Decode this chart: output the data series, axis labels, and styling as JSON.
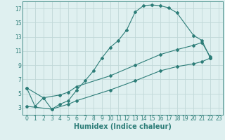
{
  "line1_x": [
    0,
    1,
    2,
    3,
    4,
    5,
    6,
    7,
    8,
    9,
    10,
    11,
    12,
    13,
    14,
    15,
    16,
    17,
    18,
    20,
    21,
    22
  ],
  "line1_y": [
    5.8,
    3.2,
    4.4,
    2.8,
    3.5,
    4.0,
    5.5,
    6.8,
    8.2,
    10.0,
    11.5,
    12.5,
    14.0,
    16.5,
    17.4,
    17.5,
    17.4,
    17.1,
    16.4,
    13.2,
    12.5,
    10.0
  ],
  "line2_x": [
    0,
    2,
    4,
    5,
    6,
    10,
    13,
    16,
    18,
    20,
    21,
    22
  ],
  "line2_y": [
    5.8,
    4.4,
    4.8,
    5.2,
    6.0,
    7.5,
    9.0,
    10.5,
    11.2,
    11.8,
    12.2,
    10.2
  ],
  "line3_x": [
    0,
    3,
    5,
    6,
    10,
    13,
    16,
    18,
    20,
    21,
    22
  ],
  "line3_y": [
    3.2,
    2.8,
    3.5,
    4.0,
    5.5,
    6.8,
    8.2,
    8.8,
    9.2,
    9.5,
    10.0
  ],
  "line_color": "#2d7d78",
  "bg_color": "#dff0f0",
  "grid_color": "#c0d8d8",
  "xlabel": "Humidex (Indice chaleur)",
  "xlim": [
    -0.5,
    23.5
  ],
  "ylim": [
    2.0,
    18.0
  ],
  "yticks": [
    3,
    5,
    7,
    9,
    11,
    13,
    15,
    17
  ],
  "xticks": [
    0,
    1,
    2,
    3,
    4,
    5,
    6,
    7,
    8,
    9,
    10,
    11,
    12,
    13,
    14,
    15,
    16,
    17,
    18,
    19,
    20,
    21,
    22,
    23
  ],
  "tick_fontsize": 5.5,
  "xlabel_fontsize": 7,
  "marker": "D",
  "marker_size": 2.0,
  "linewidth": 0.8
}
